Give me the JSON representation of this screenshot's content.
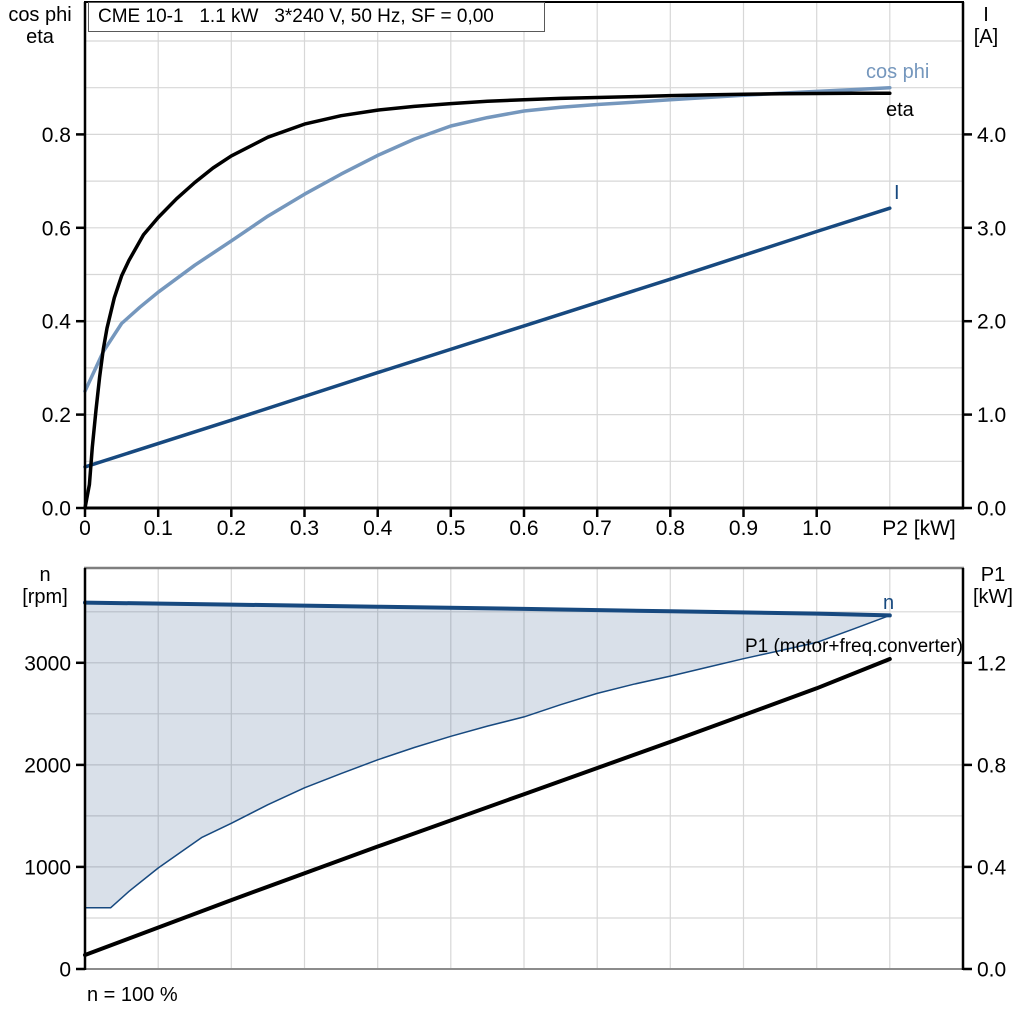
{
  "title_box": "CME 10-1   1.1 kW   3*240 V, 50 Hz, SF = 0,00",
  "labels": {
    "top_left_axis_line1": "cos phi",
    "top_left_axis_line2": "eta",
    "top_right_axis_line1": "I",
    "top_right_axis_line2": "[A]",
    "bottom_left_axis_line1": "n",
    "bottom_left_axis_line2": "[rpm]",
    "bottom_right_axis_line1": "P1",
    "bottom_right_axis_line2": "[kW]",
    "curve_cosphi": "cos phi",
    "curve_eta": "eta",
    "curve_current": "I",
    "curve_n": "n",
    "curve_p1": "P1 (motor+freq.converter)",
    "footnote": "n = 100 %"
  },
  "colors": {
    "black": "#000000",
    "light_blue": "#7597bd",
    "dark_blue": "#17497f",
    "fill": "rgba(28,74,126,0.17)",
    "grid": "#d7d7d7",
    "frame_gray": "#7f7f7f",
    "text": "#000000"
  },
  "chart_data": [
    {
      "type": "line",
      "title": "CME 10-1   1.1 kW   3*240 V, 50 Hz, SF = 0,00",
      "xlabel": "P2 [kW]",
      "ylabel_left": "cos phi / eta",
      "ylabel_right": "I [A]",
      "xlim": [
        0,
        1.2
      ],
      "ylim_left": [
        0,
        1.0835
      ],
      "ylim_right": [
        0,
        5.4175
      ],
      "grid": true,
      "x_grid": [
        0.1,
        0.2,
        0.3,
        0.4,
        0.5,
        0.6,
        0.7,
        0.8,
        0.9,
        1.0,
        1.1
      ],
      "left_grid": [
        0.1,
        0.2,
        0.3,
        0.4,
        0.5,
        0.6,
        0.7,
        0.8,
        0.9,
        1.0
      ],
      "x_ticks": {
        "values": [
          0,
          0.1,
          0.2,
          0.3,
          0.4,
          0.5,
          0.6,
          0.7,
          0.8,
          0.9,
          1.0
        ],
        "labels": [
          "0",
          "0.1",
          "0.2",
          "0.3",
          "0.4",
          "0.5",
          "0.6",
          "0.7",
          "0.8",
          "0.9",
          "1.0"
        ]
      },
      "left_ticks": {
        "values": [
          0,
          0.2,
          0.4,
          0.6,
          0.8
        ],
        "labels": [
          "0.0",
          "0.2",
          "0.4",
          "0.6",
          "0.8"
        ]
      },
      "right_ticks": {
        "values": [
          0,
          1,
          2,
          3,
          4
        ],
        "labels": [
          "0.0",
          "1.0",
          "2.0",
          "3.0",
          "4.0"
        ]
      },
      "series": [
        {
          "name": "I",
          "axis": "right",
          "color": "dark_blue",
          "width": 3.5,
          "x": [
            0,
            0.2,
            0.4,
            0.6,
            0.8,
            1.0,
            1.1
          ],
          "y": [
            0.44,
            0.94,
            1.45,
            1.95,
            2.45,
            2.96,
            3.21
          ]
        },
        {
          "name": "cos phi",
          "axis": "left",
          "color": "light_blue",
          "width": 3.5,
          "x": [
            0,
            0.025,
            0.05,
            0.075,
            0.1,
            0.15,
            0.2,
            0.25,
            0.3,
            0.35,
            0.4,
            0.45,
            0.5,
            0.55,
            0.6,
            0.65,
            0.7,
            0.75,
            0.8,
            0.85,
            0.9,
            0.95,
            1.0,
            1.05,
            1.1
          ],
          "y": [
            0.25,
            0.335,
            0.395,
            0.43,
            0.462,
            0.52,
            0.572,
            0.625,
            0.672,
            0.715,
            0.755,
            0.79,
            0.818,
            0.836,
            0.85,
            0.858,
            0.864,
            0.869,
            0.874,
            0.879,
            0.884,
            0.888,
            0.892,
            0.896,
            0.9
          ]
        },
        {
          "name": "eta",
          "axis": "left",
          "color": "black",
          "width": 3.5,
          "x": [
            0,
            0.006,
            0.01,
            0.015,
            0.02,
            0.025,
            0.03,
            0.04,
            0.05,
            0.06,
            0.08,
            0.1,
            0.125,
            0.15,
            0.175,
            0.2,
            0.25,
            0.3,
            0.35,
            0.4,
            0.45,
            0.5,
            0.55,
            0.6,
            0.65,
            0.7,
            0.75,
            0.8,
            0.85,
            0.9,
            0.95,
            1.0,
            1.05,
            1.1
          ],
          "y": [
            0,
            0.05,
            0.13,
            0.21,
            0.28,
            0.34,
            0.385,
            0.45,
            0.497,
            0.53,
            0.585,
            0.622,
            0.662,
            0.697,
            0.728,
            0.754,
            0.794,
            0.822,
            0.84,
            0.852,
            0.86,
            0.866,
            0.871,
            0.874,
            0.877,
            0.879,
            0.881,
            0.883,
            0.8845,
            0.886,
            0.887,
            0.8875,
            0.888,
            0.888
          ]
        }
      ]
    },
    {
      "type": "line+area",
      "title": "",
      "xlabel": "",
      "ylabel_left": "n [rpm]",
      "ylabel_right": "P1 [kW]",
      "xlim": [
        0,
        1.2
      ],
      "ylim_left": [
        0,
        3929
      ],
      "ylim_right": [
        0,
        1.5716
      ],
      "grid": true,
      "x_grid": [
        0.1,
        0.2,
        0.3,
        0.4,
        0.5,
        0.6,
        0.7,
        0.8,
        0.9,
        1.0,
        1.1
      ],
      "left_grid": [
        500,
        1000,
        1500,
        2000,
        2500,
        3000,
        3500
      ],
      "x_ticks": {
        "values": [],
        "labels": []
      },
      "left_ticks": {
        "values": [
          0,
          1000,
          2000,
          3000
        ],
        "labels": [
          "0",
          "1000",
          "2000",
          "3000"
        ]
      },
      "right_ticks": {
        "values": [
          0,
          0.4,
          0.8,
          1.2
        ],
        "labels": [
          "0.0",
          "0.4",
          "0.8",
          "1.2"
        ]
      },
      "annotation": "n = 100 %",
      "area": {
        "upper": "n",
        "lower": "n min",
        "color": "fill"
      },
      "series": [
        {
          "name": "n min",
          "axis": "left",
          "color": "dark_blue",
          "width": 1.5,
          "x": [
            0,
            0.035,
            0.06,
            0.1,
            0.13,
            0.16,
            0.2,
            0.25,
            0.3,
            0.35,
            0.4,
            0.45,
            0.5,
            0.55,
            0.6,
            0.65,
            0.7,
            0.75,
            0.8,
            0.85,
            0.9,
            0.95,
            1.0,
            1.05,
            1.1
          ],
          "y": [
            600,
            600,
            760,
            990,
            1140,
            1290,
            1428,
            1610,
            1775,
            1915,
            2050,
            2170,
            2280,
            2380,
            2470,
            2590,
            2700,
            2790,
            2870,
            2955,
            3040,
            3120,
            3200,
            3330,
            3465
          ]
        },
        {
          "name": "n",
          "axis": "left",
          "color": "dark_blue",
          "width": 4,
          "x": [
            0,
            0.2,
            0.4,
            0.6,
            0.8,
            1.0,
            1.1
          ],
          "y": [
            3590,
            3570,
            3550,
            3528,
            3505,
            3482,
            3465
          ]
        },
        {
          "name": "P1 (motor+freq.converter)",
          "axis": "right",
          "color": "black",
          "width": 4,
          "x": [
            0,
            0.2,
            0.4,
            0.6,
            0.8,
            1.0,
            1.1
          ],
          "y": [
            0.055,
            0.27,
            0.48,
            0.685,
            0.89,
            1.1,
            1.215
          ]
        }
      ]
    }
  ]
}
